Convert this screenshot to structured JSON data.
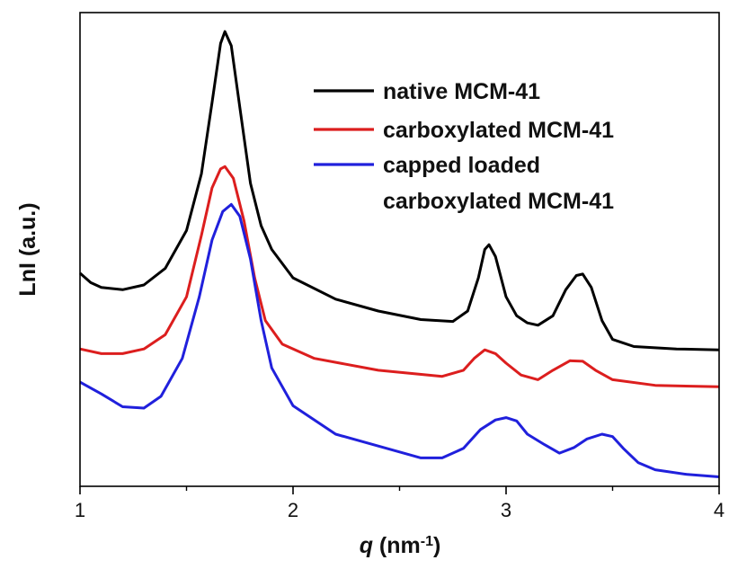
{
  "chart_data": {
    "type": "line",
    "xlabel": {
      "var": "q",
      "unit": " (nm",
      "exp": "-1",
      "close": ")"
    },
    "ylabel": "LnI (a.u.)",
    "xlim": [
      1,
      4
    ],
    "ylim": [
      0,
      1
    ],
    "x_ticks": [
      1,
      2,
      3,
      4
    ],
    "x_minor_ticks": [
      1.5,
      2.5,
      3.5
    ],
    "y_tick_labels": false,
    "grid": false,
    "legend_position": "top-right",
    "series": [
      {
        "name": "native MCM-41",
        "color": "#000000",
        "points": [
          [
            1.0,
            0.45
          ],
          [
            1.05,
            0.43
          ],
          [
            1.1,
            0.42
          ],
          [
            1.2,
            0.415
          ],
          [
            1.3,
            0.425
          ],
          [
            1.4,
            0.46
          ],
          [
            1.5,
            0.54
          ],
          [
            1.57,
            0.66
          ],
          [
            1.62,
            0.81
          ],
          [
            1.66,
            0.935
          ],
          [
            1.68,
            0.96
          ],
          [
            1.71,
            0.93
          ],
          [
            1.75,
            0.8
          ],
          [
            1.8,
            0.64
          ],
          [
            1.85,
            0.55
          ],
          [
            1.9,
            0.5
          ],
          [
            2.0,
            0.44
          ],
          [
            2.2,
            0.395
          ],
          [
            2.4,
            0.37
          ],
          [
            2.6,
            0.352
          ],
          [
            2.75,
            0.348
          ],
          [
            2.82,
            0.37
          ],
          [
            2.87,
            0.44
          ],
          [
            2.9,
            0.5
          ],
          [
            2.92,
            0.51
          ],
          [
            2.95,
            0.485
          ],
          [
            3.0,
            0.4
          ],
          [
            3.05,
            0.36
          ],
          [
            3.1,
            0.345
          ],
          [
            3.15,
            0.34
          ],
          [
            3.22,
            0.36
          ],
          [
            3.28,
            0.415
          ],
          [
            3.33,
            0.445
          ],
          [
            3.36,
            0.448
          ],
          [
            3.4,
            0.42
          ],
          [
            3.45,
            0.35
          ],
          [
            3.5,
            0.31
          ],
          [
            3.6,
            0.295
          ],
          [
            3.8,
            0.29
          ],
          [
            4.0,
            0.288
          ]
        ]
      },
      {
        "name": "carboxylated MCM-41",
        "color": "#dc1e1e",
        "points": [
          [
            1.0,
            0.29
          ],
          [
            1.1,
            0.28
          ],
          [
            1.2,
            0.28
          ],
          [
            1.3,
            0.29
          ],
          [
            1.4,
            0.32
          ],
          [
            1.5,
            0.4
          ],
          [
            1.57,
            0.53
          ],
          [
            1.62,
            0.63
          ],
          [
            1.66,
            0.67
          ],
          [
            1.68,
            0.675
          ],
          [
            1.72,
            0.65
          ],
          [
            1.77,
            0.56
          ],
          [
            1.82,
            0.44
          ],
          [
            1.87,
            0.35
          ],
          [
            1.95,
            0.3
          ],
          [
            2.1,
            0.27
          ],
          [
            2.4,
            0.245
          ],
          [
            2.7,
            0.232
          ],
          [
            2.8,
            0.245
          ],
          [
            2.85,
            0.27
          ],
          [
            2.9,
            0.288
          ],
          [
            2.95,
            0.28
          ],
          [
            3.0,
            0.26
          ],
          [
            3.07,
            0.235
          ],
          [
            3.15,
            0.225
          ],
          [
            3.22,
            0.245
          ],
          [
            3.3,
            0.265
          ],
          [
            3.36,
            0.264
          ],
          [
            3.42,
            0.245
          ],
          [
            3.5,
            0.225
          ],
          [
            3.7,
            0.213
          ],
          [
            4.0,
            0.21
          ]
        ]
      },
      {
        "name": "capped loaded carboxylated MCM-41",
        "name_lines": [
          "capped loaded",
          " carboxylated MCM-41"
        ],
        "color": "#2020dc",
        "points": [
          [
            1.0,
            0.22
          ],
          [
            1.1,
            0.195
          ],
          [
            1.2,
            0.168
          ],
          [
            1.3,
            0.165
          ],
          [
            1.38,
            0.19
          ],
          [
            1.48,
            0.27
          ],
          [
            1.56,
            0.4
          ],
          [
            1.62,
            0.52
          ],
          [
            1.67,
            0.58
          ],
          [
            1.71,
            0.595
          ],
          [
            1.75,
            0.57
          ],
          [
            1.8,
            0.48
          ],
          [
            1.85,
            0.35
          ],
          [
            1.9,
            0.25
          ],
          [
            2.0,
            0.17
          ],
          [
            2.2,
            0.11
          ],
          [
            2.4,
            0.085
          ],
          [
            2.6,
            0.06
          ],
          [
            2.7,
            0.06
          ],
          [
            2.8,
            0.08
          ],
          [
            2.88,
            0.12
          ],
          [
            2.95,
            0.14
          ],
          [
            3.0,
            0.145
          ],
          [
            3.05,
            0.138
          ],
          [
            3.1,
            0.11
          ],
          [
            3.18,
            0.088
          ],
          [
            3.25,
            0.07
          ],
          [
            3.32,
            0.082
          ],
          [
            3.38,
            0.1
          ],
          [
            3.45,
            0.11
          ],
          [
            3.5,
            0.105
          ],
          [
            3.55,
            0.08
          ],
          [
            3.62,
            0.05
          ],
          [
            3.7,
            0.035
          ],
          [
            3.85,
            0.025
          ],
          [
            4.0,
            0.02
          ]
        ]
      }
    ]
  }
}
